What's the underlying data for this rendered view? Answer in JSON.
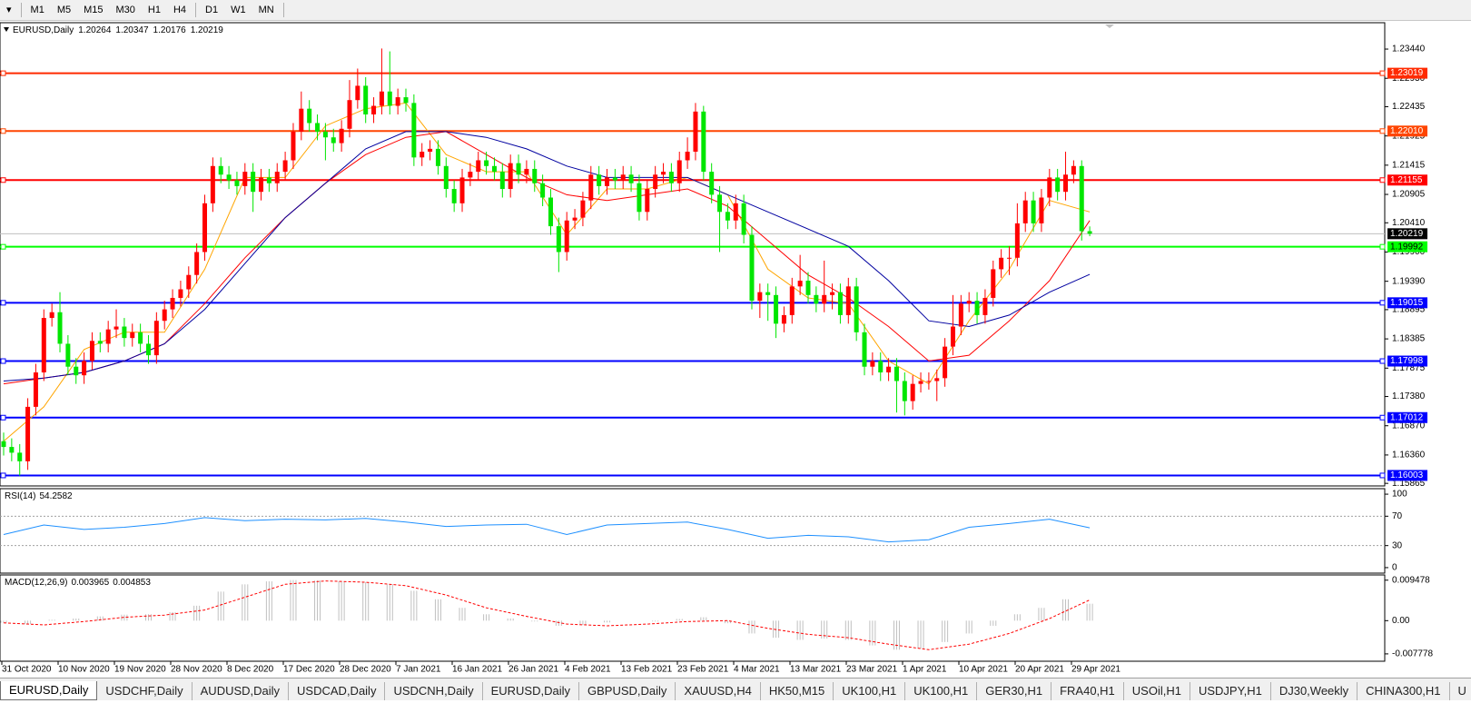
{
  "toolbar": {
    "timeframes": [
      "M1",
      "M5",
      "M15",
      "M30",
      "H1",
      "H4",
      "D1",
      "W1",
      "MN"
    ]
  },
  "tabs": [
    "EURUSD,Daily",
    "USDCHF,Daily",
    "AUDUSD,Daily",
    "USDCAD,Daily",
    "USDCNH,Daily",
    "EURUSD,Daily",
    "GBPUSD,Daily",
    "XAUUSD,H4",
    "HK50,M15",
    "UK100,H1",
    "UK100,H1",
    "GER30,H1",
    "FRA40,H1",
    "USOil,H1",
    "USDJPY,H1",
    "DJ30,Weekly",
    "CHINA300,H1",
    "U"
  ],
  "chart_data": [
    {
      "type": "candlestick",
      "title": "EURUSD,Daily",
      "up_color": "#ff0000",
      "down_color": "#00e600",
      "open": [
        1.166,
        1.165,
        1.164,
        1.1625,
        1.172,
        1.178,
        1.1875,
        1.1885,
        1.183,
        1.179,
        1.1775,
        1.18,
        1.1835,
        1.183,
        1.1855,
        1.186,
        1.184,
        1.185,
        1.183,
        1.181,
        1.187,
        1.189,
        1.191,
        1.1925,
        1.195,
        1.199,
        1.2075,
        1.214,
        1.2125,
        1.2115,
        1.2105,
        1.213,
        1.2095,
        1.212,
        1.211,
        1.213,
        1.215,
        1.22,
        1.224,
        1.2215,
        1.22,
        1.219,
        1.218,
        1.2205,
        1.2255,
        1.228,
        1.223,
        1.2245,
        1.227,
        1.2245,
        1.226,
        1.225,
        1.2155,
        1.2165,
        1.217,
        1.214,
        1.21,
        1.2075,
        1.212,
        1.213,
        1.215,
        1.214,
        1.213,
        1.21,
        1.2145,
        1.2125,
        1.2135,
        1.211,
        1.2085,
        1.2035,
        1.199,
        1.2045,
        1.205,
        1.208,
        1.2125,
        1.2105,
        1.212,
        1.2115,
        1.2125,
        1.211,
        1.206,
        1.21,
        1.2125,
        1.213,
        1.211,
        1.215,
        1.2165,
        1.2235,
        1.213,
        1.209,
        1.206,
        1.2045,
        1.2075,
        1.202,
        1.1905,
        1.192,
        1.1915,
        1.1865,
        1.188,
        1.193,
        1.194,
        1.1915,
        1.19,
        1.1915,
        1.192,
        1.188,
        1.193,
        1.185,
        1.179,
        1.18,
        1.178,
        1.179,
        1.1765,
        1.173,
        1.176,
        1.1765,
        1.1765,
        1.177,
        1.1825,
        1.186,
        1.19,
        1.1905,
        1.188,
        1.191,
        1.196,
        1.198,
        1.198,
        1.204,
        1.208,
        1.204,
        1.2085,
        1.212,
        1.2095,
        1.2125,
        1.214,
        1.20264
      ],
      "high": [
        1.1675,
        1.1665,
        1.1655,
        1.1735,
        1.1795,
        1.189,
        1.19,
        1.192,
        1.1845,
        1.1805,
        1.1815,
        1.185,
        1.185,
        1.187,
        1.189,
        1.1875,
        1.1865,
        1.1865,
        1.1845,
        1.1885,
        1.1905,
        1.1925,
        1.194,
        1.1965,
        1.2005,
        1.209,
        1.2155,
        1.2155,
        1.214,
        1.213,
        1.2145,
        1.2145,
        1.2135,
        1.2135,
        1.2145,
        1.2165,
        1.2215,
        1.227,
        1.2255,
        1.223,
        1.2215,
        1.2205,
        1.222,
        1.229,
        1.231,
        1.2295,
        1.226,
        1.2345,
        1.234,
        1.2275,
        1.2275,
        1.2265,
        1.218,
        1.2185,
        1.2185,
        1.2155,
        1.2115,
        1.2135,
        1.2145,
        1.2165,
        1.2165,
        1.2155,
        1.2145,
        1.216,
        1.216,
        1.215,
        1.215,
        1.2125,
        1.21,
        1.205,
        1.206,
        1.2065,
        1.2095,
        1.214,
        1.214,
        1.2135,
        1.2135,
        1.214,
        1.214,
        1.2125,
        1.2115,
        1.214,
        1.2145,
        1.2145,
        1.2165,
        1.219,
        1.225,
        1.2245,
        1.2145,
        1.2105,
        1.2075,
        1.209,
        1.209,
        1.2035,
        1.1935,
        1.1935,
        1.193,
        1.1895,
        1.1945,
        1.1985,
        1.1955,
        1.193,
        1.1975,
        1.1935,
        1.1935,
        1.1945,
        1.1945,
        1.1865,
        1.1815,
        1.1815,
        1.1805,
        1.1805,
        1.178,
        1.1775,
        1.178,
        1.178,
        1.1785,
        1.184,
        1.1915,
        1.1915,
        1.192,
        1.192,
        1.1925,
        1.1975,
        1.1995,
        1.2,
        1.2075,
        1.2095,
        1.2095,
        1.21,
        1.2135,
        1.2135,
        1.2165,
        1.215,
        1.215,
        1.20347
      ],
      "low": [
        1.1635,
        1.1625,
        1.16,
        1.161,
        1.1705,
        1.1765,
        1.186,
        1.1815,
        1.1775,
        1.176,
        1.176,
        1.1785,
        1.1815,
        1.1815,
        1.184,
        1.1825,
        1.1825,
        1.1815,
        1.1795,
        1.1795,
        1.1855,
        1.1875,
        1.1895,
        1.191,
        1.1935,
        1.1975,
        1.206,
        1.211,
        1.21,
        1.209,
        1.209,
        1.206,
        1.208,
        1.2095,
        1.2095,
        1.2115,
        1.2135,
        1.2185,
        1.22,
        1.2185,
        1.215,
        1.2165,
        1.2165,
        1.219,
        1.224,
        1.2215,
        1.2215,
        1.223,
        1.223,
        1.223,
        1.2235,
        1.214,
        1.214,
        1.215,
        1.2125,
        1.2085,
        1.206,
        1.206,
        1.2105,
        1.2115,
        1.2125,
        1.2115,
        1.2085,
        1.2085,
        1.211,
        1.211,
        1.2095,
        1.207,
        1.202,
        1.1955,
        1.1975,
        1.203,
        1.2035,
        1.2065,
        1.209,
        1.209,
        1.21,
        1.21,
        1.2095,
        1.2045,
        1.2045,
        1.2085,
        1.211,
        1.2095,
        1.2095,
        1.2135,
        1.215,
        1.2115,
        1.2075,
        1.199,
        1.203,
        1.203,
        1.2005,
        1.189,
        1.1875,
        1.187,
        1.184,
        1.185,
        1.1865,
        1.1915,
        1.19,
        1.1885,
        1.1885,
        1.189,
        1.1865,
        1.1865,
        1.1835,
        1.1775,
        1.1775,
        1.1765,
        1.1765,
        1.171,
        1.1705,
        1.1715,
        1.1745,
        1.175,
        1.173,
        1.1755,
        1.181,
        1.1845,
        1.1885,
        1.1865,
        1.1865,
        1.1895,
        1.1945,
        1.195,
        1.1965,
        1.2025,
        1.2025,
        1.2025,
        1.207,
        1.208,
        1.208,
        1.211,
        1.201,
        1.20176
      ],
      "close": [
        1.165,
        1.164,
        1.1625,
        1.172,
        1.178,
        1.1875,
        1.1885,
        1.183,
        1.179,
        1.1775,
        1.18,
        1.1835,
        1.183,
        1.1855,
        1.186,
        1.184,
        1.185,
        1.183,
        1.181,
        1.187,
        1.189,
        1.191,
        1.1925,
        1.195,
        1.199,
        1.2075,
        1.214,
        1.2125,
        1.2115,
        1.2105,
        1.213,
        1.2095,
        1.212,
        1.211,
        1.213,
        1.215,
        1.22,
        1.224,
        1.2215,
        1.22,
        1.219,
        1.218,
        1.2205,
        1.2255,
        1.228,
        1.223,
        1.2245,
        1.227,
        1.2245,
        1.226,
        1.225,
        1.2155,
        1.2165,
        1.217,
        1.214,
        1.21,
        1.2075,
        1.212,
        1.213,
        1.215,
        1.214,
        1.213,
        1.21,
        1.2145,
        1.2125,
        1.2135,
        1.211,
        1.2085,
        1.2035,
        1.199,
        1.2045,
        1.205,
        1.208,
        1.2125,
        1.2105,
        1.212,
        1.2115,
        1.2125,
        1.211,
        1.206,
        1.21,
        1.2125,
        1.213,
        1.211,
        1.215,
        1.2165,
        1.2235,
        1.213,
        1.209,
        1.206,
        1.2045,
        1.2075,
        1.202,
        1.1905,
        1.192,
        1.1915,
        1.1865,
        1.188,
        1.193,
        1.194,
        1.1915,
        1.19,
        1.1915,
        1.192,
        1.188,
        1.193,
        1.185,
        1.179,
        1.18,
        1.178,
        1.179,
        1.1765,
        1.173,
        1.176,
        1.1765,
        1.1765,
        1.177,
        1.1825,
        1.186,
        1.19,
        1.1905,
        1.188,
        1.191,
        1.196,
        1.198,
        1.198,
        1.204,
        1.208,
        1.204,
        1.2085,
        1.212,
        1.2095,
        1.2125,
        1.214,
        1.20264,
        1.20219
      ],
      "overlay_x": [
        0,
        5,
        10,
        15,
        20,
        25,
        30,
        35,
        40,
        45,
        50,
        55,
        60,
        65,
        70,
        75,
        80,
        85,
        90,
        95,
        100,
        105,
        110,
        115,
        120,
        125,
        130,
        135
      ],
      "overlays": [
        {
          "color": "#ffa500",
          "values": [
            1.166,
            1.172,
            1.182,
            1.185,
            1.185,
            1.196,
            1.212,
            1.212,
            1.221,
            1.224,
            1.225,
            1.216,
            1.213,
            1.213,
            1.202,
            1.21,
            1.21,
            1.212,
            1.209,
            1.196,
            1.191,
            1.19,
            1.18,
            1.176,
            1.187,
            1.196,
            1.208,
            1.206
          ]
        },
        {
          "color": "#ff0000",
          "values": [
            1.176,
            1.177,
            1.178,
            1.18,
            1.183,
            1.19,
            1.198,
            1.205,
            1.211,
            1.216,
            1.219,
            1.22,
            1.216,
            1.212,
            1.209,
            1.208,
            1.209,
            1.21,
            1.207,
            1.201,
            1.195,
            1.191,
            1.186,
            1.18,
            1.181,
            1.187,
            1.194,
            1.2045
          ]
        },
        {
          "color": "#0000a0",
          "values": [
            1.1765,
            1.177,
            1.178,
            1.18,
            1.183,
            1.189,
            1.197,
            1.205,
            1.211,
            1.217,
            1.22,
            1.22,
            1.219,
            1.217,
            1.214,
            1.212,
            1.212,
            1.212,
            1.209,
            1.206,
            1.203,
            1.2,
            1.194,
            1.187,
            1.186,
            1.188,
            1.192,
            1.1951
          ]
        }
      ],
      "levels": [
        {
          "value": 1.23019,
          "color": "#ff2a00"
        },
        {
          "value": 1.2201,
          "label": "1.22010",
          "color": "#ff4500"
        },
        {
          "value": 1.21155,
          "color": "#ff0000"
        },
        {
          "value": 1.19992,
          "color": "#00ff00"
        },
        {
          "value": 1.19015,
          "color": "#0000ff"
        },
        {
          "value": 1.17998,
          "color": "#0000ff"
        },
        {
          "value": 1.17012,
          "color": "#0000ff"
        },
        {
          "value": 1.16003,
          "color": "#0000ff"
        }
      ],
      "ylim": [
        1.1582,
        1.239
      ],
      "yticks": [
        {
          "value": 1.2344,
          "label": "1.23440"
        },
        {
          "value": 1.2293,
          "label": "1.22930"
        },
        1.22435,
        1.21925,
        1.21415,
        1.20905,
        {
          "value": 1.2041,
          "label": "1.20410"
        },
        {
          "value": 1.199,
          "label": "1.19900"
        },
        {
          "value": 1.1939,
          "label": "1.19390"
        },
        1.18895,
        1.18385,
        1.17875,
        {
          "value": 1.1738,
          "label": "1.17380"
        },
        {
          "value": 1.1687,
          "label": "1.16870"
        },
        {
          "value": 1.1636,
          "label": "1.16360"
        },
        1.15865
      ],
      "xlabels": [
        "31 Oct 2020",
        "10 Nov 2020",
        "19 Nov 2020",
        "28 Nov 2020",
        "8 Dec 2020",
        "17 Dec 2020",
        "28 Dec 2020",
        "7 Jan 2021",
        "16 Jan 2021",
        "26 Jan 2021",
        "4 Feb 2021",
        "13 Feb 2021",
        "23 Feb 2021",
        "4 Mar 2021",
        "13 Mar 2021",
        "23 Mar 2021",
        "1 Apr 2021",
        "10 Apr 2021",
        "20 Apr 2021",
        "29 Apr 2021"
      ]
    },
    {
      "type": "line",
      "title": "RSI(14)",
      "color": "#1e90ff",
      "x": [
        0,
        5,
        10,
        15,
        20,
        25,
        30,
        35,
        40,
        45,
        50,
        55,
        60,
        65,
        70,
        75,
        80,
        85,
        90,
        95,
        100,
        105,
        110,
        115,
        120,
        125,
        130,
        135
      ],
      "values": [
        45,
        58,
        52,
        55,
        60,
        68,
        64,
        66,
        65,
        67,
        62,
        56,
        58,
        59,
        45,
        58,
        60,
        62,
        52,
        40,
        44,
        42,
        35,
        38,
        55,
        60,
        66,
        54.2582
      ],
      "levels": [
        70,
        30
      ],
      "ylim": [
        -7.5,
        107.5
      ],
      "yticks": [
        100,
        70,
        30,
        0
      ]
    },
    {
      "type": "macd",
      "title": "MACD(12,26,9)",
      "color": "#c0c0c0",
      "x": [
        0,
        3,
        6,
        9,
        12,
        15,
        18,
        21,
        24,
        27,
        30,
        33,
        36,
        39,
        42,
        45,
        48,
        51,
        54,
        57,
        60,
        63,
        66,
        69,
        72,
        75,
        78,
        81,
        84,
        87,
        90,
        93,
        96,
        99,
        102,
        105,
        108,
        111,
        114,
        117,
        120,
        123,
        126,
        129,
        132,
        135
      ],
      "values": [
        -0.0005,
        -0.0008,
        0.0002,
        0.0005,
        0.001,
        0.0014,
        0.0015,
        0.002,
        0.0035,
        0.0068,
        0.0085,
        0.0092,
        0.0095,
        0.0094,
        0.0092,
        0.009,
        0.0085,
        0.007,
        0.005,
        0.003,
        0.0015,
        0.0005,
        -0.0002,
        -0.0012,
        -0.001,
        -0.0004,
        0,
        -0.0002,
        0.0004,
        0.0008,
        -0.0006,
        -0.003,
        -0.004,
        -0.0045,
        -0.0042,
        -0.0045,
        -0.0058,
        -0.0068,
        -0.0065,
        -0.005,
        -0.003,
        -0.0012,
        0.0015,
        0.003,
        0.005,
        0.003965
      ],
      "signal": {
        "color": "#ff0000",
        "x": [
          0,
          5,
          10,
          15,
          20,
          25,
          30,
          35,
          40,
          45,
          50,
          55,
          60,
          65,
          70,
          75,
          80,
          85,
          90,
          95,
          100,
          105,
          110,
          115,
          120,
          125,
          130,
          135
        ],
        "values": [
          -0.0005,
          -0.001,
          -0.0002,
          0.0008,
          0.0013,
          0.0025,
          0.0055,
          0.0085,
          0.0093,
          0.009,
          0.0082,
          0.006,
          0.003,
          0.001,
          -0.0008,
          -0.0012,
          -0.0008,
          -0.0002,
          0,
          -0.0018,
          -0.0032,
          -0.004,
          -0.0055,
          -0.0068,
          -0.0055,
          -0.003,
          0.0005,
          0.004853
        ]
      },
      "ylim": [
        -0.0095,
        0.0107
      ],
      "yticks": [
        0.009478,
        {
          "value": 0,
          "label": "0.00"
        },
        -0.007778
      ]
    }
  ]
}
